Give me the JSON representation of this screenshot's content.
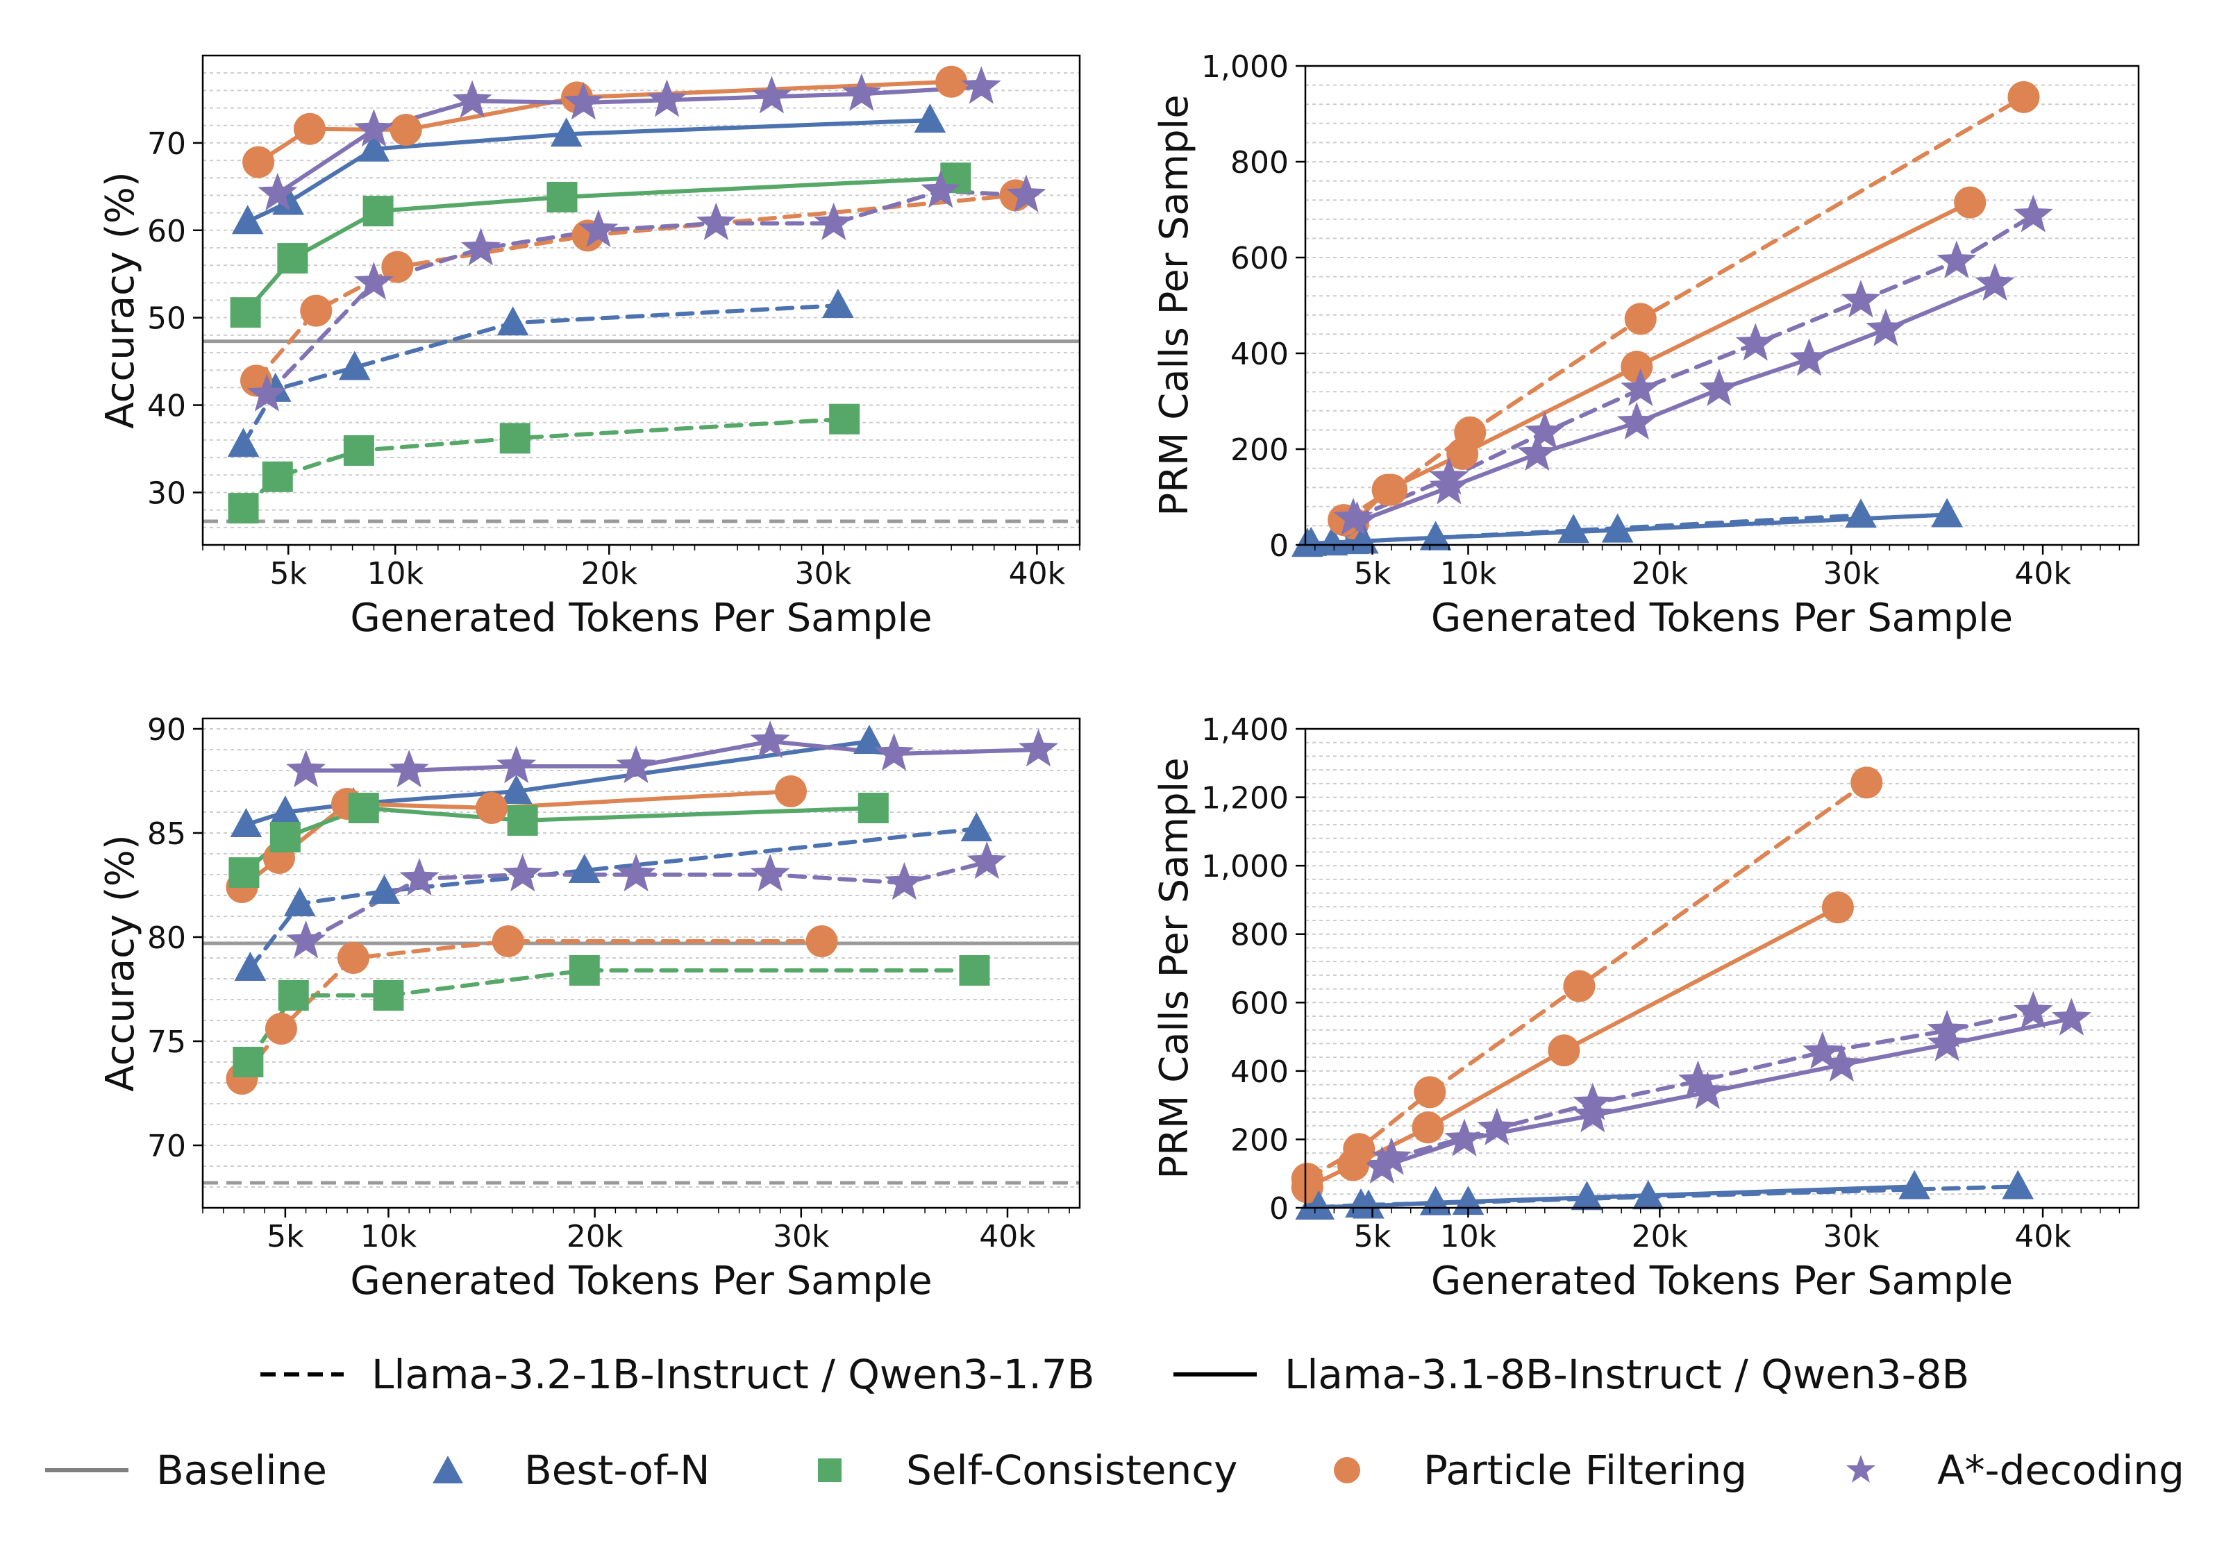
{
  "colors": {
    "best_of_n": "#4c72b0",
    "self_consistency": "#55a868",
    "particle_filtering": "#dd8452",
    "a_star": "#8172b3",
    "baseline": "#999999",
    "axis": "#000000",
    "grid": "#cccccc"
  },
  "legend": {
    "line_styles": [
      {
        "name": "dashed",
        "label": "Llama-3.2-1B-Instruct / Qwen3-1.7B"
      },
      {
        "name": "solid",
        "label": "Llama-3.1-8B-Instruct / Qwen3-8B"
      }
    ],
    "methods": [
      {
        "key": "baseline",
        "label": "Baseline",
        "marker": "line"
      },
      {
        "key": "best_of_n",
        "label": "Best-of-N",
        "marker": "triangle"
      },
      {
        "key": "self_consistency",
        "label": "Self-Consistency",
        "marker": "square"
      },
      {
        "key": "particle_filtering",
        "label": "Particle Filtering",
        "marker": "circle"
      },
      {
        "key": "a_star",
        "label": "A*-decoding",
        "marker": "star"
      }
    ]
  },
  "chart_data": [
    {
      "id": "top-left-accuracy",
      "type": "line",
      "xlabel": "Generated Tokens Per Sample",
      "ylabel": "Accuracy (%)",
      "xlim": [
        1000,
        42000
      ],
      "ylim": [
        24,
        80
      ],
      "xticks": [
        5000,
        10000,
        20000,
        30000,
        40000
      ],
      "xtick_labels": [
        "5k",
        "10k",
        "20k",
        "30k",
        "40k"
      ],
      "yticks": [
        30,
        40,
        50,
        60,
        70
      ],
      "ytick_labels": [
        "30",
        "40",
        "50",
        "60",
        "70"
      ],
      "baselines": [
        {
          "style": "solid",
          "y": 47.3
        },
        {
          "style": "dashed",
          "y": 26.7
        }
      ],
      "series": [
        {
          "method": "best_of_n",
          "style": "solid",
          "x": [
            3100,
            5000,
            9000,
            18000,
            35000
          ],
          "y": [
            61,
            63.2,
            69.3,
            71,
            72.6
          ]
        },
        {
          "method": "particle_filtering",
          "style": "solid",
          "x": [
            3600,
            6000,
            10500,
            18500,
            36000
          ],
          "y": [
            67.8,
            71.6,
            71.5,
            75.2,
            77
          ]
        },
        {
          "method": "a_star",
          "style": "solid",
          "x": [
            4500,
            9000,
            13600,
            18800,
            22700,
            27600,
            31800,
            37400
          ],
          "y": [
            64.2,
            71.5,
            74.8,
            74.6,
            74.9,
            75.3,
            75.6,
            76.4
          ]
        },
        {
          "method": "self_consistency",
          "style": "solid",
          "x": [
            3000,
            5200,
            9200,
            17800,
            36200
          ],
          "y": [
            50.6,
            56.8,
            62.2,
            63.8,
            66
          ]
        },
        {
          "method": "best_of_n",
          "style": "dashed",
          "x": [
            2900,
            4400,
            8100,
            15500,
            30700
          ],
          "y": [
            35.5,
            41.8,
            44.3,
            49.4,
            51.4
          ]
        },
        {
          "method": "particle_filtering",
          "style": "dashed",
          "x": [
            3500,
            6300,
            10100,
            19000,
            39000
          ],
          "y": [
            42.8,
            50.8,
            55.8,
            59.4,
            64
          ]
        },
        {
          "method": "a_star",
          "style": "dashed",
          "x": [
            4000,
            9000,
            14000,
            19500,
            25000,
            30500,
            35500,
            39500
          ],
          "y": [
            41.2,
            54,
            57.9,
            60,
            60.8,
            60.8,
            64.5,
            64
          ]
        },
        {
          "method": "self_consistency",
          "style": "dashed",
          "x": [
            2900,
            4500,
            8300,
            15600,
            31000
          ],
          "y": [
            28.2,
            31.8,
            34.8,
            36.2,
            38.4
          ]
        }
      ]
    },
    {
      "id": "top-right-prm-calls",
      "type": "line",
      "xlabel": "Generated Tokens Per Sample",
      "ylabel": "PRM Calls Per Sample",
      "xlim": [
        1500,
        45000
      ],
      "ylim": [
        0,
        1000
      ],
      "xticks": [
        5000,
        10000,
        20000,
        30000,
        40000
      ],
      "xtick_labels": [
        "5k",
        "10k",
        "20k",
        "30k",
        "40k"
      ],
      "yticks": [
        0,
        200,
        400,
        600,
        800,
        1000
      ],
      "ytick_labels": [
        "0",
        "200",
        "400",
        "600",
        "800",
        "1,000"
      ],
      "series": [
        {
          "method": "best_of_n",
          "style": "solid",
          "x": [
            1800,
            4000,
            8300,
            17800,
            35000
          ],
          "y": [
            3,
            7,
            15,
            31,
            63
          ]
        },
        {
          "method": "particle_filtering",
          "style": "solid",
          "x": [
            4000,
            5800,
            9700,
            18800,
            36200
          ],
          "y": [
            45,
            115,
            190,
            372,
            715
          ]
        },
        {
          "method": "a_star",
          "style": "solid",
          "x": [
            4200,
            9000,
            13600,
            18800,
            23100,
            27800,
            31800,
            37500
          ],
          "y": [
            48,
            120,
            190,
            255,
            325,
            388,
            450,
            545
          ]
        },
        {
          "method": "best_of_n",
          "style": "dashed",
          "x": [
            1600,
            2900,
            4500,
            8300,
            15500,
            30500
          ],
          "y": [
            1,
            4,
            8,
            15,
            30,
            62
          ]
        },
        {
          "method": "particle_filtering",
          "style": "dashed",
          "x": [
            3500,
            6000,
            10100,
            19000,
            39000
          ],
          "y": [
            52,
            115,
            235,
            472,
            935
          ]
        },
        {
          "method": "a_star",
          "style": "dashed",
          "x": [
            4000,
            9000,
            14000,
            19000,
            25000,
            30500,
            35500,
            39500
          ],
          "y": [
            55,
            140,
            235,
            325,
            420,
            510,
            592,
            688
          ]
        }
      ]
    },
    {
      "id": "bottom-left-accuracy",
      "type": "line",
      "xlabel": "Generated Tokens Per Sample",
      "ylabel": "Accuracy (%)",
      "xlim": [
        1000,
        43500
      ],
      "ylim": [
        67,
        90.5
      ],
      "xticks": [
        5000,
        10000,
        20000,
        30000,
        40000
      ],
      "xtick_labels": [
        "5k",
        "10k",
        "20k",
        "30k",
        "40k"
      ],
      "yticks": [
        70,
        75,
        80,
        85,
        90
      ],
      "ytick_labels": [
        "70",
        "75",
        "80",
        "85",
        "90"
      ],
      "baselines": [
        {
          "style": "solid",
          "y": 79.7
        },
        {
          "style": "dashed",
          "y": 68.2
        }
      ],
      "series": [
        {
          "method": "best_of_n",
          "style": "solid",
          "x": [
            3100,
            5000,
            8300,
            16200,
            33300
          ],
          "y": [
            85.4,
            86,
            86.4,
            87,
            89.4
          ]
        },
        {
          "method": "a_star",
          "style": "solid",
          "x": [
            6000,
            11000,
            16200,
            22000,
            28500,
            34500,
            41500
          ],
          "y": [
            88,
            88,
            88.2,
            88.2,
            89.4,
            88.8,
            89
          ]
        },
        {
          "method": "particle_filtering",
          "style": "solid",
          "x": [
            2900,
            4700,
            8000,
            15000,
            29500
          ],
          "y": [
            82.4,
            83.8,
            86.4,
            86.2,
            87
          ]
        },
        {
          "method": "self_consistency",
          "style": "solid",
          "x": [
            3000,
            5000,
            8800,
            16500,
            33500
          ],
          "y": [
            83.1,
            84.8,
            86.2,
            85.6,
            86.2
          ]
        },
        {
          "method": "best_of_n",
          "style": "dashed",
          "x": [
            3300,
            5700,
            9800,
            19500,
            38500
          ],
          "y": [
            78.5,
            81.6,
            82.2,
            83.2,
            85.2
          ]
        },
        {
          "method": "a_star",
          "style": "dashed",
          "x": [
            6000,
            11500,
            16500,
            22000,
            28500,
            35000,
            39000
          ],
          "y": [
            79.8,
            82.8,
            83,
            83,
            83,
            82.6,
            83.6
          ]
        },
        {
          "method": "particle_filtering",
          "style": "dashed",
          "x": [
            2900,
            4800,
            8300,
            15800,
            31000
          ],
          "y": [
            73.2,
            75.6,
            79,
            79.8,
            79.8
          ]
        },
        {
          "method": "self_consistency",
          "style": "dashed",
          "x": [
            3200,
            5400,
            10000,
            19500,
            38400
          ],
          "y": [
            74,
            77.2,
            77.2,
            78.4,
            78.4
          ]
        }
      ]
    },
    {
      "id": "bottom-right-prm-calls",
      "type": "line",
      "xlabel": "Generated Tokens Per Sample",
      "ylabel": "PRM Calls Per Sample",
      "xlim": [
        1500,
        45000
      ],
      "ylim": [
        0,
        1400
      ],
      "xticks": [
        5000,
        10000,
        20000,
        30000,
        40000
      ],
      "xtick_labels": [
        "5k",
        "10k",
        "20k",
        "30k",
        "40k"
      ],
      "yticks": [
        0,
        200,
        400,
        600,
        800,
        1000,
        1200,
        1400
      ],
      "ytick_labels": [
        "0",
        "200",
        "400",
        "600",
        "800",
        "1,000",
        "1,200",
        "1,400"
      ],
      "series": [
        {
          "method": "best_of_n",
          "style": "solid",
          "x": [
            1800,
            4800,
            8300,
            16200,
            33300
          ],
          "y": [
            2,
            5,
            15,
            30,
            62
          ]
        },
        {
          "method": "particle_filtering",
          "style": "solid",
          "x": [
            1600,
            4000,
            7900,
            15000,
            29300
          ],
          "y": [
            60,
            125,
            235,
            460,
            878
          ]
        },
        {
          "method": "a_star",
          "style": "solid",
          "x": [
            5500,
            9800,
            16500,
            22500,
            29500,
            35000,
            41500
          ],
          "y": [
            120,
            200,
            270,
            338,
            418,
            478,
            553
          ]
        },
        {
          "method": "best_of_n",
          "style": "dashed",
          "x": [
            2200,
            4400,
            10000,
            19400,
            38700
          ],
          "y": [
            2,
            8,
            16,
            32,
            62
          ]
        },
        {
          "method": "particle_filtering",
          "style": "dashed",
          "x": [
            1600,
            4300,
            8000,
            15800,
            30800
          ],
          "y": [
            85,
            172,
            338,
            648,
            1243
          ]
        },
        {
          "method": "a_star",
          "style": "dashed",
          "x": [
            6000,
            11500,
            16500,
            22000,
            28500,
            35000,
            39500
          ],
          "y": [
            145,
            232,
            305,
            370,
            455,
            518,
            573
          ]
        }
      ]
    }
  ]
}
